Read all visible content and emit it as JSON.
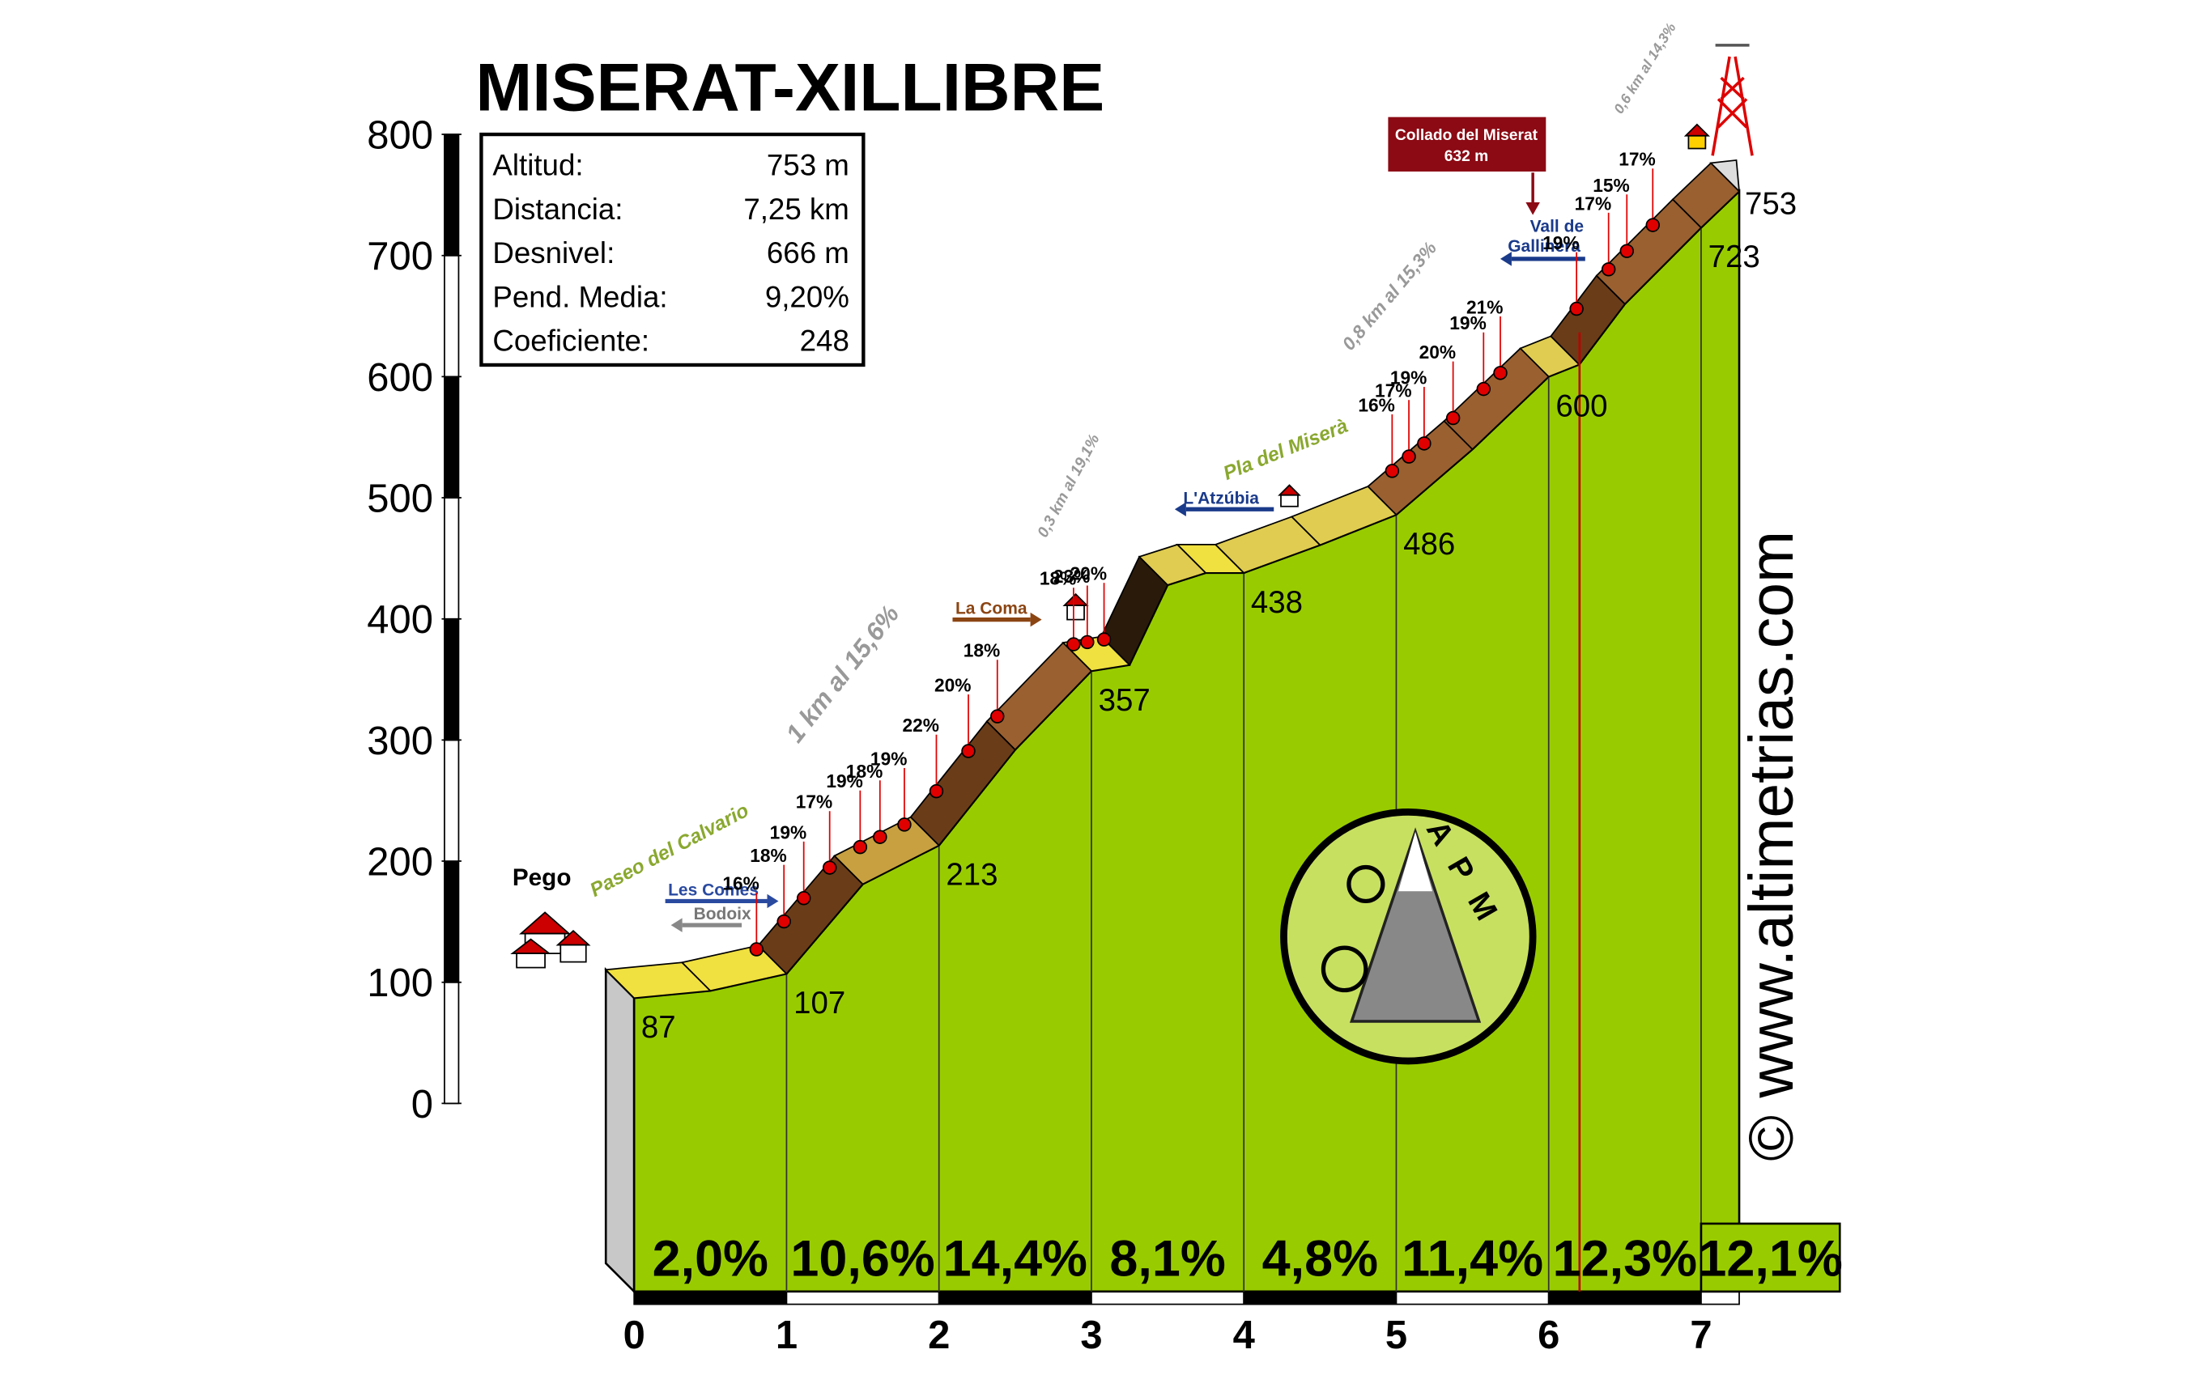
{
  "title": "MISERAT-XILLIBRE",
  "info": {
    "rows": [
      [
        "Altitud:",
        "753 m"
      ],
      [
        "Distancia:",
        "7,25 km"
      ],
      [
        "Desnivel:",
        "666 m"
      ],
      [
        "Pend. Media:",
        "9,20%"
      ],
      [
        "Coeficiente:",
        "248"
      ]
    ]
  },
  "chart_data": {
    "type": "profile",
    "color": "#99cc00",
    "x": [
      0,
      0.5,
      1,
      1.5,
      2,
      2.5,
      3,
      3.25,
      3.5,
      3.75,
      4,
      4.5,
      5,
      5.5,
      6,
      6.2,
      6.5,
      7,
      7.25
    ],
    "values": [
      87,
      93,
      107,
      181,
      213,
      292,
      357,
      362,
      428,
      438,
      438,
      461,
      486,
      540,
      600,
      610,
      660,
      723,
      753
    ],
    "xlim": [
      0,
      7.25
    ],
    "xticks": [
      0,
      1,
      2,
      3,
      4,
      5,
      6,
      7
    ],
    "ylim": [
      0,
      800
    ],
    "yticks": [
      0,
      100,
      200,
      300,
      400,
      500,
      600,
      700,
      800
    ],
    "segments": {
      "values": [
        2.0,
        10.6,
        14.4,
        8.1,
        4.8,
        11.4,
        12.3,
        12.1
      ],
      "value_labels": [
        "2,0%",
        "10,6%",
        "14,4%",
        "8,1%",
        "4,8%",
        "11,4%",
        "12,3%",
        "12,1%"
      ]
    },
    "gradient_marks": {
      "color": "#e00000",
      "x": [
        0.97,
        1.15,
        1.28,
        1.45,
        1.65,
        1.78,
        1.94,
        2.15,
        2.36,
        2.55,
        3.05,
        3.14,
        3.25,
        5.14,
        5.25,
        5.35,
        5.54,
        5.74,
        5.85,
        6.35,
        6.56,
        6.68,
        6.85
      ],
      "values": [
        16,
        18,
        19,
        17,
        19,
        18,
        19,
        22,
        20,
        18,
        18,
        23,
        20,
        16,
        17,
        19,
        20,
        19,
        21,
        19,
        17,
        15,
        17
      ],
      "value_labels": [
        "16%",
        "18%",
        "19%",
        "17%",
        "19%",
        "18%",
        "19%",
        "22%",
        "20%",
        "18%",
        "18%",
        "23%",
        "20%",
        "16%",
        "17%",
        "19%",
        "20%",
        "19%",
        "21%",
        "19%",
        "17%",
        "15%",
        "17%"
      ]
    }
  },
  "slope_notes": [
    "1 km al 15,6%",
    "0,3 km al 19,1%",
    "0,8 km al 15,3%",
    "0,6 km al 14,3%"
  ],
  "place_notes": [
    "Paseo del Calvario",
    "Pla del Miserà"
  ],
  "places": {
    "start": "Pego",
    "les_comes": "Les Comes",
    "bodoix": "Bodoix",
    "la_coma": "La Coma",
    "atzubia": "L'Atzúbia",
    "gallinera": [
      "Vall de",
      "Gallinera"
    ],
    "collado": [
      "Collado del Miserat",
      "632 m"
    ]
  },
  "watermark": "© www.altimetrias.com",
  "logo": "APM"
}
